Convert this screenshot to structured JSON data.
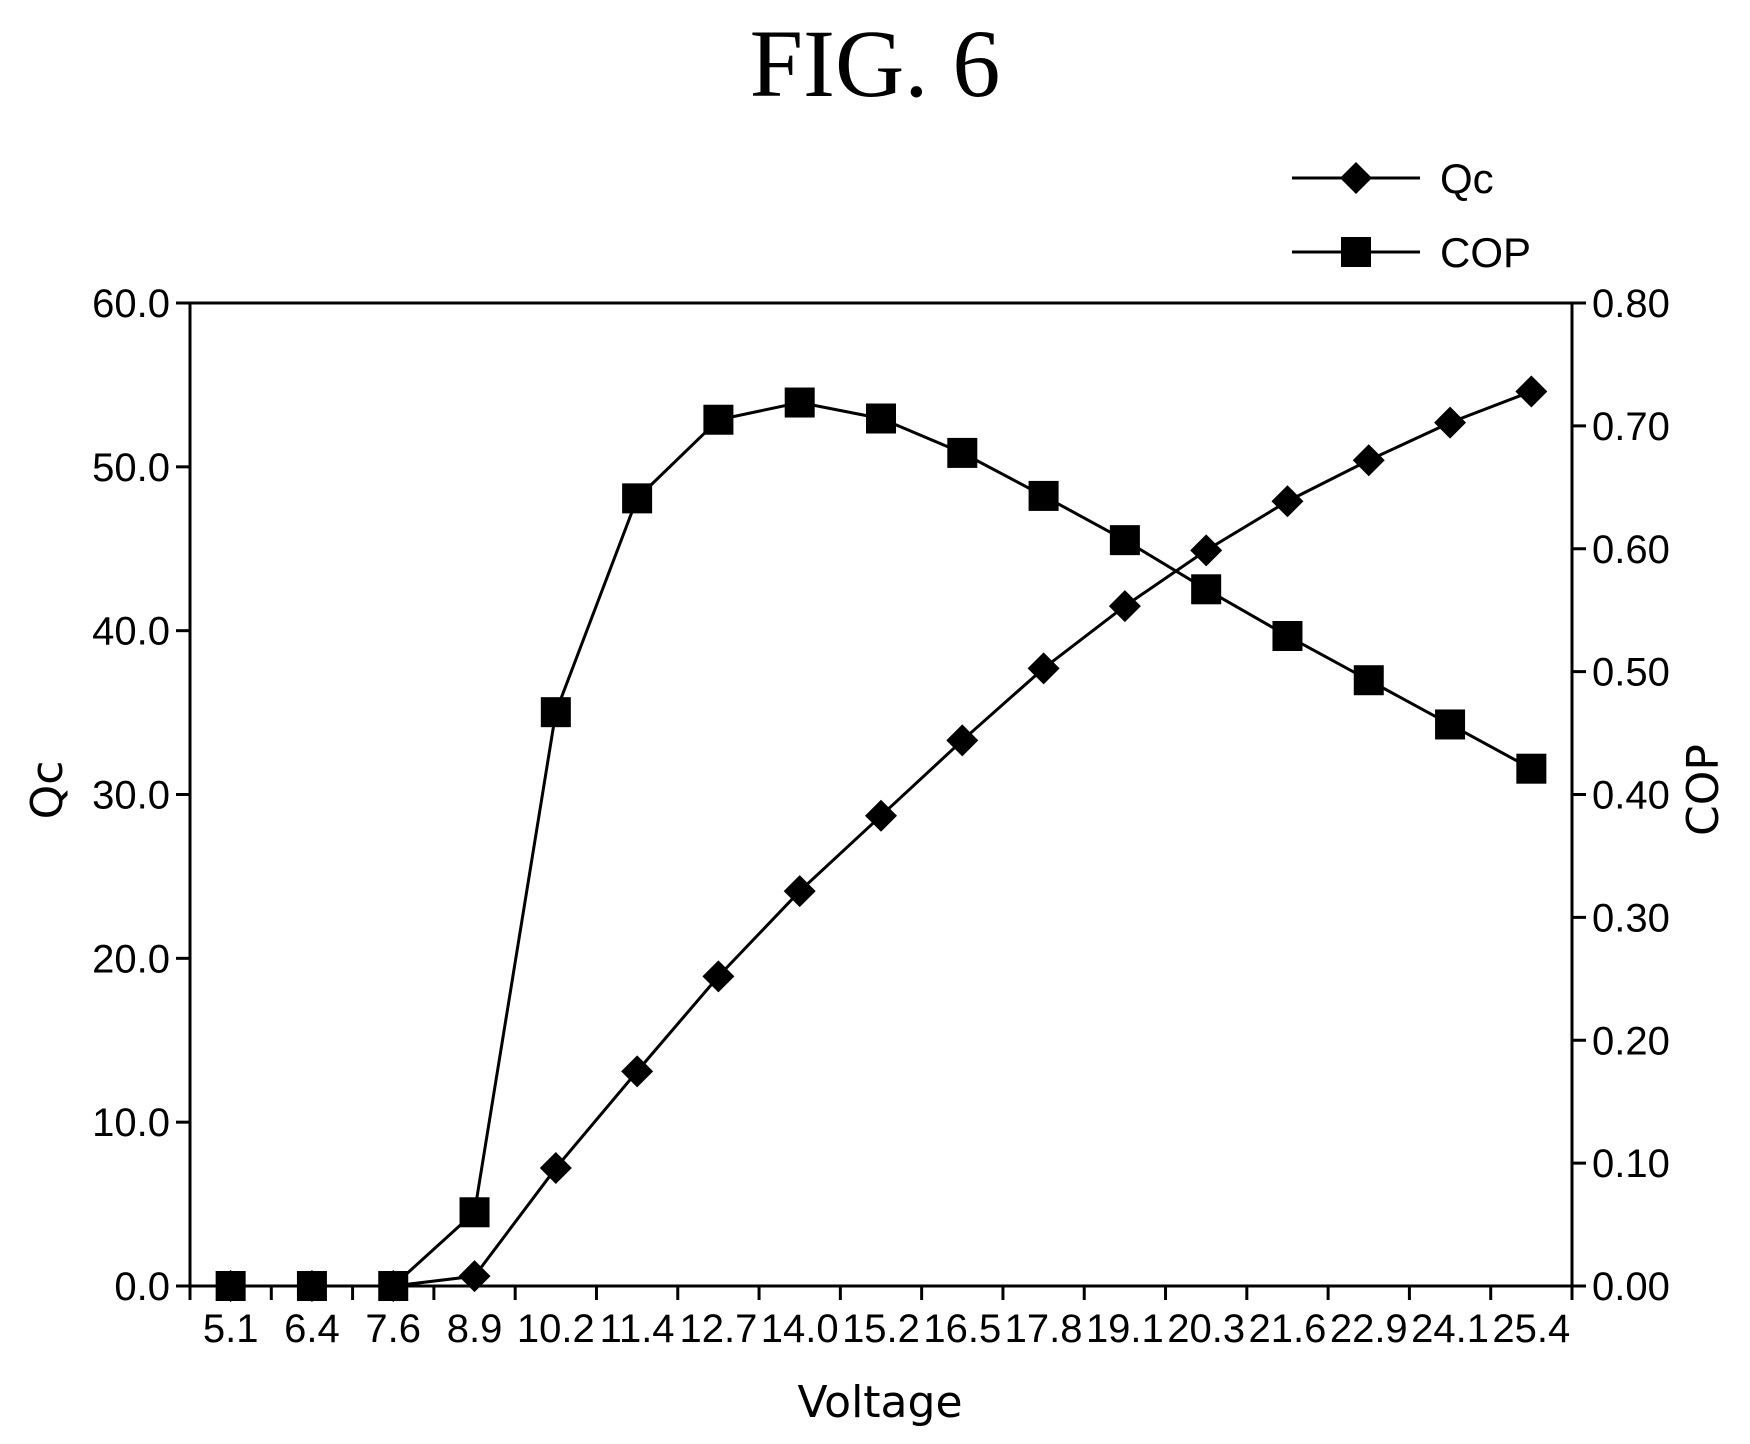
{
  "figure_title": "FIG. 6",
  "chart_data": {
    "type": "line",
    "title": "",
    "xlabel": "Voltage",
    "ylabel_left": "Qc",
    "ylabel_right": "COP",
    "categories": [
      "5.1",
      "6.4",
      "7.6",
      "8.9",
      "10.2",
      "11.4",
      "12.7",
      "14.0",
      "15.2",
      "16.5",
      "17.8",
      "19.1",
      "20.3",
      "21.6",
      "22.9",
      "24.1",
      "25.4"
    ],
    "ylim_left": [
      0,
      60
    ],
    "ylim_right": [
      0,
      0.8
    ],
    "yticks_left": [
      "0.0",
      "10.0",
      "20.0",
      "30.0",
      "40.0",
      "50.0",
      "60.0"
    ],
    "yticks_right": [
      "0.00",
      "0.10",
      "0.20",
      "0.30",
      "0.40",
      "0.50",
      "0.60",
      "0.70",
      "0.80"
    ],
    "grid": false,
    "legend_position": "top-right",
    "series": [
      {
        "name": "Qc",
        "axis": "left",
        "marker": "diamond",
        "values": [
          0.0,
          0.0,
          0.0,
          0.6,
          7.2,
          13.1,
          18.9,
          24.1,
          28.7,
          33.3,
          37.7,
          41.5,
          44.9,
          47.9,
          50.4,
          52.7,
          54.6
        ]
      },
      {
        "name": "COP",
        "axis": "right",
        "marker": "square",
        "values": [
          0.0,
          0.0,
          0.0,
          0.06,
          0.467,
          0.641,
          0.705,
          0.719,
          0.706,
          0.678,
          0.643,
          0.607,
          0.567,
          0.529,
          0.493,
          0.457,
          0.421
        ]
      }
    ]
  }
}
